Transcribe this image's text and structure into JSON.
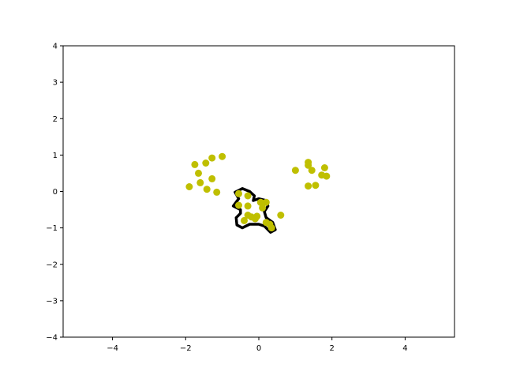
{
  "chart_data": {
    "type": "scatter",
    "title": "",
    "xlabel": "",
    "ylabel": "",
    "xlim": [
      -5.35,
      5.35
    ],
    "ylim": [
      -4,
      4
    ],
    "x_ticks": [
      -4,
      -2,
      0,
      2,
      4
    ],
    "y_ticks": [
      -4,
      -3,
      -2,
      -1,
      0,
      1,
      2,
      3,
      4
    ],
    "grid": false,
    "legend": "none",
    "point_color": "#bfbf00",
    "outline_color": "#000000",
    "series": [
      {
        "values": [
          [
            -1.9,
            0.13
          ],
          [
            -1.75,
            0.74
          ],
          [
            -1.65,
            0.5
          ],
          [
            -1.6,
            0.24
          ],
          [
            -1.45,
            0.78
          ],
          [
            -1.42,
            0.06
          ],
          [
            -1.28,
            0.92
          ],
          [
            -1.28,
            0.35
          ],
          [
            -1.15,
            -0.02
          ],
          [
            -1.0,
            0.96
          ],
          [
            1.0,
            0.58
          ],
          [
            1.35,
            0.8
          ],
          [
            1.35,
            0.72
          ],
          [
            1.35,
            0.15
          ],
          [
            1.45,
            0.58
          ],
          [
            1.55,
            0.17
          ],
          [
            1.72,
            0.45
          ],
          [
            1.8,
            0.65
          ],
          [
            1.85,
            0.42
          ],
          [
            -0.55,
            -0.06
          ],
          [
            -0.55,
            -0.38
          ],
          [
            -0.3,
            -0.12
          ],
          [
            -0.3,
            -0.4
          ],
          [
            -0.3,
            -0.65
          ],
          [
            -0.4,
            -0.8
          ],
          [
            -0.2,
            -0.7
          ],
          [
            -0.1,
            -0.75
          ],
          [
            -0.05,
            -0.68
          ],
          [
            0.05,
            -0.3
          ],
          [
            0.1,
            -0.45
          ],
          [
            0.2,
            -0.3
          ],
          [
            0.2,
            -0.85
          ],
          [
            0.3,
            -0.9
          ],
          [
            0.35,
            -1.0
          ],
          [
            0.6,
            -0.65
          ]
        ]
      }
    ],
    "contour": [
      [
        -0.65,
        -0.02
      ],
      [
        -0.45,
        0.08
      ],
      [
        -0.25,
        0.0
      ],
      [
        -0.12,
        -0.12
      ],
      [
        -0.15,
        -0.25
      ],
      [
        0.0,
        -0.2
      ],
      [
        0.2,
        -0.25
      ],
      [
        0.25,
        -0.4
      ],
      [
        0.15,
        -0.55
      ],
      [
        0.2,
        -0.72
      ],
      [
        0.38,
        -0.85
      ],
      [
        0.45,
        -1.05
      ],
      [
        0.32,
        -1.12
      ],
      [
        0.15,
        -0.95
      ],
      [
        0.0,
        -0.9
      ],
      [
        -0.25,
        -0.9
      ],
      [
        -0.45,
        -1.0
      ],
      [
        -0.6,
        -0.92
      ],
      [
        -0.62,
        -0.72
      ],
      [
        -0.5,
        -0.6
      ],
      [
        -0.5,
        -0.5
      ],
      [
        -0.7,
        -0.4
      ],
      [
        -0.55,
        -0.2
      ]
    ]
  }
}
